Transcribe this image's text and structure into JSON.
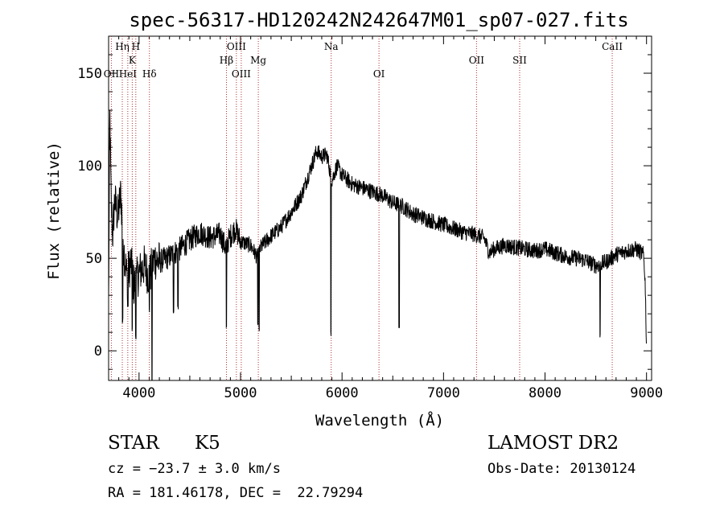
{
  "chart_data": {
    "type": "line",
    "title": "spec-56317-HD120242N242647M01_sp07-027.fits",
    "xlabel": "Wavelength (Å)",
    "ylabel": "Flux (relative)",
    "xlim": [
      3700,
      9050
    ],
    "ylim": [
      -16,
      170
    ],
    "x_ticks": [
      4000,
      5000,
      6000,
      7000,
      8000,
      9000
    ],
    "y_ticks": [
      0,
      50,
      100,
      150
    ],
    "spectrum_knots": [
      [
        3700,
        25
      ],
      [
        3712,
        130
      ],
      [
        3725,
        80
      ],
      [
        3740,
        62
      ],
      [
        3760,
        82
      ],
      [
        3790,
        72
      ],
      [
        3820,
        85
      ],
      [
        3850,
        55
      ],
      [
        3880,
        40
      ],
      [
        3920,
        48
      ],
      [
        3950,
        35
      ],
      [
        4000,
        42
      ],
      [
        4050,
        46
      ],
      [
        4100,
        40
      ],
      [
        4150,
        50
      ],
      [
        4200,
        48
      ],
      [
        4300,
        51
      ],
      [
        4400,
        55
      ],
      [
        4500,
        60
      ],
      [
        4600,
        64
      ],
      [
        4700,
        61
      ],
      [
        4800,
        63
      ],
      [
        4850,
        56
      ],
      [
        4900,
        62
      ],
      [
        4950,
        66
      ],
      [
        5000,
        59
      ],
      [
        5100,
        57
      ],
      [
        5170,
        50
      ],
      [
        5200,
        56
      ],
      [
        5300,
        62
      ],
      [
        5400,
        67
      ],
      [
        5500,
        75
      ],
      [
        5600,
        84
      ],
      [
        5700,
        100
      ],
      [
        5750,
        108
      ],
      [
        5800,
        105
      ],
      [
        5850,
        106
      ],
      [
        5900,
        92
      ],
      [
        5950,
        100
      ],
      [
        6000,
        95
      ],
      [
        6100,
        90
      ],
      [
        6200,
        88
      ],
      [
        6300,
        86
      ],
      [
        6400,
        84
      ],
      [
        6500,
        80
      ],
      [
        6600,
        78
      ],
      [
        6700,
        74
      ],
      [
        6800,
        72
      ],
      [
        6900,
        70
      ],
      [
        7000,
        68
      ],
      [
        7100,
        66
      ],
      [
        7200,
        64
      ],
      [
        7300,
        63
      ],
      [
        7400,
        61
      ],
      [
        7450,
        53
      ],
      [
        7500,
        55
      ],
      [
        7600,
        57
      ],
      [
        7700,
        56
      ],
      [
        7800,
        55
      ],
      [
        7900,
        54
      ],
      [
        8000,
        55
      ],
      [
        8100,
        53
      ],
      [
        8200,
        51
      ],
      [
        8300,
        50
      ],
      [
        8400,
        49
      ],
      [
        8500,
        46
      ],
      [
        8600,
        48
      ],
      [
        8700,
        52
      ],
      [
        8800,
        54
      ],
      [
        8900,
        55
      ],
      [
        8970,
        52
      ],
      [
        8985,
        40
      ],
      [
        9000,
        2
      ]
    ],
    "absorption_dips": [
      [
        3838,
        14
      ],
      [
        3890,
        22
      ],
      [
        3933,
        10
      ],
      [
        3968,
        5
      ],
      [
        4102,
        20
      ],
      [
        4128,
        -18
      ],
      [
        4340,
        20
      ],
      [
        4384,
        22
      ],
      [
        4861,
        10
      ],
      [
        5170,
        12
      ],
      [
        5183,
        8
      ],
      [
        5890,
        8
      ],
      [
        6563,
        12
      ],
      [
        8542,
        6
      ]
    ],
    "noise": 4.5,
    "lines": [
      {
        "label": "Hη",
        "x": 3835,
        "row": 0
      },
      {
        "label": "H",
        "x": 3968,
        "row": 0
      },
      {
        "label": "K",
        "x": 3933,
        "row": 1
      },
      {
        "label": "OII",
        "x": 3727,
        "row": 2
      },
      {
        "label": "HeI",
        "x": 3889,
        "row": 2
      },
      {
        "label": "Hδ",
        "x": 4102,
        "row": 2
      },
      {
        "label": "OIII",
        "x": 4959,
        "row": 0
      },
      {
        "label": "Hβ",
        "x": 4861,
        "row": 1
      },
      {
        "label": "Mg",
        "x": 5175,
        "row": 1
      },
      {
        "label": "OIII",
        "x": 5007,
        "row": 2
      },
      {
        "label": "Na",
        "x": 5893,
        "row": 0
      },
      {
        "label": "OI",
        "x": 6364,
        "row": 2
      },
      {
        "label": "OII",
        "x": 7325,
        "row": 1
      },
      {
        "label": "SII",
        "x": 7750,
        "row": 1
      },
      {
        "label": "CaII",
        "x": 8662,
        "row": 0
      }
    ],
    "grid": false,
    "legend": "none"
  },
  "info": {
    "object_type": "STAR",
    "subclass": "K5",
    "survey": "LAMOST DR2",
    "cz": "cz = −23.7 ± 3.0 km/s",
    "obs_date": "Obs-Date: 20130124",
    "coords": "RA = 181.46178, DEC =  22.79294"
  },
  "colors": {
    "spectrum": "#000000",
    "line_markers": "#b03030",
    "axes": "#000000"
  }
}
